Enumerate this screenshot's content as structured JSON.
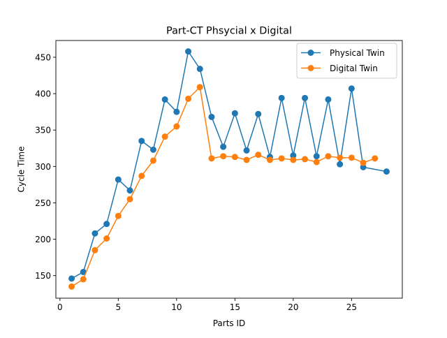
{
  "chart_data": {
    "type": "line",
    "title": "Part-CT Phsycial x Digital",
    "xlabel": "Parts ID",
    "ylabel": "Cycle Time",
    "xlim": [
      -0.35,
      29.35
    ],
    "ylim": [
      119,
      473
    ],
    "xticks": [
      0,
      5,
      10,
      15,
      20,
      25
    ],
    "yticks": [
      150,
      200,
      250,
      300,
      350,
      400,
      450
    ],
    "grid": false,
    "legend_position": "top-right",
    "series": [
      {
        "name": "Physical Twin",
        "color": "#1f77b4",
        "x": [
          1,
          2,
          3,
          4,
          5,
          6,
          7,
          8,
          9,
          10,
          11,
          12,
          13,
          14,
          15,
          16,
          17,
          18,
          19,
          20,
          21,
          22,
          23,
          24,
          25,
          26,
          28
        ],
        "y": [
          146,
          155,
          208,
          221,
          282,
          267,
          335,
          323,
          392,
          375,
          458,
          434,
          368,
          327,
          373,
          322,
          372,
          313,
          394,
          315,
          394,
          314,
          392,
          303,
          407,
          299,
          293
        ]
      },
      {
        "name": "Digital Twin",
        "color": "#ff7f0e",
        "x": [
          1,
          2,
          3,
          4,
          5,
          6,
          7,
          8,
          9,
          10,
          11,
          12,
          13,
          14,
          15,
          16,
          17,
          18,
          19,
          20,
          21,
          22,
          23,
          24,
          25,
          26,
          27
        ],
        "y": [
          135,
          145,
          185,
          201,
          232,
          255,
          287,
          308,
          341,
          355,
          393,
          409,
          311,
          314,
          313,
          309,
          316,
          309,
          311,
          309,
          310,
          306,
          314,
          312,
          312,
          305,
          311
        ]
      }
    ]
  }
}
